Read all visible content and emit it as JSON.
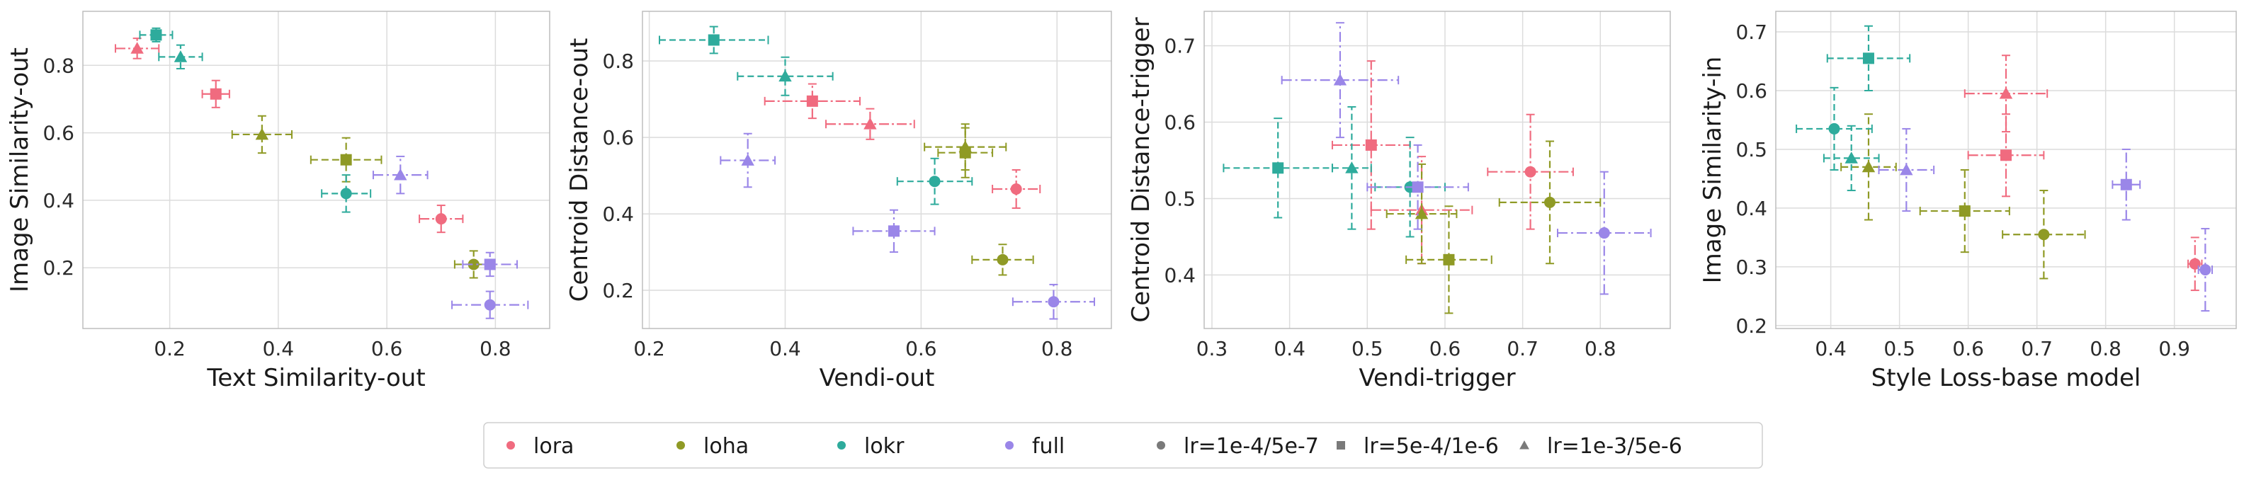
{
  "colors": {
    "lora": "#f06b7f",
    "loha": "#8f9a25",
    "lokr": "#2eab9c",
    "full": "#9a86e8",
    "neutral": "#7a7a7a",
    "grid": "#dcdcdc",
    "frame": "#bdbdbd"
  },
  "legend": {
    "items": [
      {
        "label": "lora",
        "marker": "circle",
        "color_key": "lora"
      },
      {
        "label": "loha",
        "marker": "circle",
        "color_key": "loha"
      },
      {
        "label": "lokr",
        "marker": "circle",
        "color_key": "lokr"
      },
      {
        "label": "full",
        "marker": "circle",
        "color_key": "full"
      },
      {
        "label": "lr=1e-4/5e-7",
        "marker": "circle",
        "color_key": "neutral"
      },
      {
        "label": "lr=5e-4/1e-6",
        "marker": "square",
        "color_key": "neutral"
      },
      {
        "label": "lr=1e-3/5e-6",
        "marker": "triangle",
        "color_key": "neutral"
      }
    ]
  },
  "chart_data": [
    {
      "type": "scatter",
      "xlabel": "Text Similarity-out",
      "ylabel": "Image Similarity-out",
      "xlim": [
        0.04,
        0.9
      ],
      "ylim": [
        0.02,
        0.96
      ],
      "xticks": [
        0.2,
        0.4,
        0.6,
        0.8
      ],
      "yticks": [
        0.2,
        0.4,
        0.6,
        0.8
      ],
      "tick_labels_x": [
        "0.2",
        "0.4",
        "0.6",
        "0.8"
      ],
      "tick_labels_y": [
        "0.2",
        "0.4",
        "0.6",
        "0.8"
      ],
      "grid": true,
      "points": [
        {
          "method": "lora",
          "lr": "lr=1e-3/5e-6",
          "x": 0.14,
          "y": 0.85,
          "xerr": 0.04,
          "yerr": 0.03
        },
        {
          "method": "lora",
          "lr": "lr=5e-4/1e-6",
          "x": 0.285,
          "y": 0.715,
          "xerr": 0.025,
          "yerr": 0.04
        },
        {
          "method": "lora",
          "lr": "lr=1e-4/5e-7",
          "x": 0.7,
          "y": 0.345,
          "xerr": 0.04,
          "yerr": 0.04
        },
        {
          "method": "loha",
          "lr": "lr=1e-3/5e-6",
          "x": 0.37,
          "y": 0.595,
          "xerr": 0.055,
          "yerr": 0.055
        },
        {
          "method": "loha",
          "lr": "lr=5e-4/1e-6",
          "x": 0.525,
          "y": 0.52,
          "xerr": 0.065,
          "yerr": 0.065
        },
        {
          "method": "loha",
          "lr": "lr=1e-4/5e-7",
          "x": 0.76,
          "y": 0.21,
          "xerr": 0.035,
          "yerr": 0.04
        },
        {
          "method": "lokr",
          "lr": "lr=5e-4/1e-6",
          "x": 0.175,
          "y": 0.89,
          "xerr": 0.03,
          "yerr": 0.02
        },
        {
          "method": "lokr",
          "lr": "lr=1e-3/5e-6",
          "x": 0.22,
          "y": 0.825,
          "xerr": 0.04,
          "yerr": 0.035
        },
        {
          "method": "lokr",
          "lr": "lr=1e-4/5e-7",
          "x": 0.525,
          "y": 0.42,
          "xerr": 0.045,
          "yerr": 0.055
        },
        {
          "method": "full",
          "lr": "lr=1e-3/5e-6",
          "x": 0.625,
          "y": 0.475,
          "xerr": 0.05,
          "yerr": 0.055
        },
        {
          "method": "full",
          "lr": "lr=5e-4/1e-6",
          "x": 0.79,
          "y": 0.21,
          "xerr": 0.05,
          "yerr": 0.035
        },
        {
          "method": "full",
          "lr": "lr=1e-4/5e-7",
          "x": 0.79,
          "y": 0.09,
          "xerr": 0.07,
          "yerr": 0.04
        }
      ]
    },
    {
      "type": "scatter",
      "xlabel": "Vendi-out",
      "ylabel": "Centroid Distance-out",
      "xlim": [
        0.19,
        0.88
      ],
      "ylim": [
        0.1,
        0.93
      ],
      "xticks": [
        0.2,
        0.4,
        0.6,
        0.8
      ],
      "yticks": [
        0.2,
        0.4,
        0.6,
        0.8
      ],
      "tick_labels_x": [
        "0.2",
        "0.4",
        "0.6",
        "0.8"
      ],
      "tick_labels_y": [
        "0.2",
        "0.4",
        "0.6",
        "0.8"
      ],
      "grid": true,
      "points": [
        {
          "method": "lora",
          "lr": "lr=5e-4/1e-6",
          "x": 0.44,
          "y": 0.695,
          "xerr": 0.07,
          "yerr": 0.045
        },
        {
          "method": "lora",
          "lr": "lr=1e-3/5e-6",
          "x": 0.525,
          "y": 0.635,
          "xerr": 0.065,
          "yerr": 0.04
        },
        {
          "method": "lora",
          "lr": "lr=1e-4/5e-7",
          "x": 0.74,
          "y": 0.465,
          "xerr": 0.035,
          "yerr": 0.05
        },
        {
          "method": "loha",
          "lr": "lr=1e-3/5e-6",
          "x": 0.665,
          "y": 0.575,
          "xerr": 0.06,
          "yerr": 0.06
        },
        {
          "method": "loha",
          "lr": "lr=5e-4/1e-6",
          "x": 0.665,
          "y": 0.56,
          "xerr": 0.04,
          "yerr": 0.065
        },
        {
          "method": "loha",
          "lr": "lr=1e-4/5e-7",
          "x": 0.72,
          "y": 0.28,
          "xerr": 0.045,
          "yerr": 0.04
        },
        {
          "method": "lokr",
          "lr": "lr=5e-4/1e-6",
          "x": 0.295,
          "y": 0.855,
          "xerr": 0.08,
          "yerr": 0.035
        },
        {
          "method": "lokr",
          "lr": "lr=1e-3/5e-6",
          "x": 0.4,
          "y": 0.76,
          "xerr": 0.07,
          "yerr": 0.05
        },
        {
          "method": "lokr",
          "lr": "lr=1e-4/5e-7",
          "x": 0.62,
          "y": 0.485,
          "xerr": 0.055,
          "yerr": 0.06
        },
        {
          "method": "full",
          "lr": "lr=1e-3/5e-6",
          "x": 0.345,
          "y": 0.54,
          "xerr": 0.04,
          "yerr": 0.07
        },
        {
          "method": "full",
          "lr": "lr=5e-4/1e-6",
          "x": 0.56,
          "y": 0.355,
          "xerr": 0.06,
          "yerr": 0.055
        },
        {
          "method": "full",
          "lr": "lr=1e-4/5e-7",
          "x": 0.795,
          "y": 0.17,
          "xerr": 0.06,
          "yerr": 0.045
        }
      ]
    },
    {
      "type": "scatter",
      "xlabel": "Vendi-trigger",
      "ylabel": "Centroid Distance-trigger",
      "xlim": [
        0.29,
        0.89
      ],
      "ylim": [
        0.33,
        0.745
      ],
      "xticks": [
        0.3,
        0.4,
        0.5,
        0.6,
        0.7,
        0.8
      ],
      "yticks": [
        0.4,
        0.5,
        0.6,
        0.7
      ],
      "tick_labels_x": [
        "0.3",
        "0.4",
        "0.5",
        "0.6",
        "0.7",
        "0.8"
      ],
      "tick_labels_y": [
        "0.4",
        "0.5",
        "0.6",
        "0.7"
      ],
      "grid": true,
      "points": [
        {
          "method": "lora",
          "lr": "lr=5e-4/1e-6",
          "x": 0.505,
          "y": 0.57,
          "xerr": 0.05,
          "yerr": 0.11
        },
        {
          "method": "lora",
          "lr": "lr=1e-3/5e-6",
          "x": 0.57,
          "y": 0.485,
          "xerr": 0.065,
          "yerr": 0.07
        },
        {
          "method": "lora",
          "lr": "lr=1e-4/5e-7",
          "x": 0.71,
          "y": 0.535,
          "xerr": 0.055,
          "yerr": 0.075
        },
        {
          "method": "loha",
          "lr": "lr=1e-3/5e-6",
          "x": 0.57,
          "y": 0.48,
          "xerr": 0.045,
          "yerr": 0.065
        },
        {
          "method": "loha",
          "lr": "lr=5e-4/1e-6",
          "x": 0.605,
          "y": 0.42,
          "xerr": 0.055,
          "yerr": 0.07
        },
        {
          "method": "loha",
          "lr": "lr=1e-4/5e-7",
          "x": 0.735,
          "y": 0.495,
          "xerr": 0.065,
          "yerr": 0.08
        },
        {
          "method": "lokr",
          "lr": "lr=5e-4/1e-6",
          "x": 0.385,
          "y": 0.54,
          "xerr": 0.07,
          "yerr": 0.065
        },
        {
          "method": "lokr",
          "lr": "lr=1e-3/5e-6",
          "x": 0.48,
          "y": 0.54,
          "xerr": 0.025,
          "yerr": 0.08
        },
        {
          "method": "lokr",
          "lr": "lr=1e-4/5e-7",
          "x": 0.555,
          "y": 0.515,
          "xerr": 0.045,
          "yerr": 0.065
        },
        {
          "method": "full",
          "lr": "lr=1e-3/5e-6",
          "x": 0.465,
          "y": 0.655,
          "xerr": 0.075,
          "yerr": 0.075
        },
        {
          "method": "full",
          "lr": "lr=5e-4/1e-6",
          "x": 0.565,
          "y": 0.515,
          "xerr": 0.065,
          "yerr": 0.055
        },
        {
          "method": "full",
          "lr": "lr=1e-4/5e-7",
          "x": 0.805,
          "y": 0.455,
          "xerr": 0.06,
          "yerr": 0.08
        }
      ]
    },
    {
      "type": "scatter",
      "xlabel": "Style Loss-base model",
      "ylabel": "Image Similarity-in",
      "xlim": [
        0.32,
        0.99
      ],
      "ylim": [
        0.195,
        0.735
      ],
      "xticks": [
        0.4,
        0.5,
        0.6,
        0.7,
        0.8,
        0.9
      ],
      "yticks": [
        0.2,
        0.3,
        0.4,
        0.5,
        0.6,
        0.7
      ],
      "tick_labels_x": [
        "0.4",
        "0.5",
        "0.6",
        "0.7",
        "0.8",
        "0.9"
      ],
      "tick_labels_y": [
        "0.2",
        "0.3",
        "0.4",
        "0.5",
        "0.6",
        "0.7"
      ],
      "grid": true,
      "points": [
        {
          "method": "lora",
          "lr": "lr=1e-3/5e-6",
          "x": 0.655,
          "y": 0.595,
          "xerr": 0.06,
          "yerr": 0.065
        },
        {
          "method": "lora",
          "lr": "lr=5e-4/1e-6",
          "x": 0.655,
          "y": 0.49,
          "xerr": 0.055,
          "yerr": 0.07
        },
        {
          "method": "lora",
          "lr": "lr=1e-4/5e-7",
          "x": 0.93,
          "y": 0.305,
          "xerr": 0.01,
          "yerr": 0.045
        },
        {
          "method": "loha",
          "lr": "lr=1e-3/5e-6",
          "x": 0.455,
          "y": 0.47,
          "xerr": 0.04,
          "yerr": 0.09
        },
        {
          "method": "loha",
          "lr": "lr=5e-4/1e-6",
          "x": 0.595,
          "y": 0.395,
          "xerr": 0.065,
          "yerr": 0.07
        },
        {
          "method": "loha",
          "lr": "lr=1e-4/5e-7",
          "x": 0.71,
          "y": 0.355,
          "xerr": 0.06,
          "yerr": 0.075
        },
        {
          "method": "lokr",
          "lr": "lr=5e-4/1e-6",
          "x": 0.455,
          "y": 0.655,
          "xerr": 0.06,
          "yerr": 0.055
        },
        {
          "method": "lokr",
          "lr": "lr=1e-4/5e-7",
          "x": 0.405,
          "y": 0.535,
          "xerr": 0.055,
          "yerr": 0.07
        },
        {
          "method": "lokr",
          "lr": "lr=1e-3/5e-6",
          "x": 0.43,
          "y": 0.485,
          "xerr": 0.04,
          "yerr": 0.055
        },
        {
          "method": "full",
          "lr": "lr=1e-3/5e-6",
          "x": 0.51,
          "y": 0.465,
          "xerr": 0.04,
          "yerr": 0.07
        },
        {
          "method": "full",
          "lr": "lr=5e-4/1e-6",
          "x": 0.83,
          "y": 0.44,
          "xerr": 0.02,
          "yerr": 0.06
        },
        {
          "method": "full",
          "lr": "lr=1e-4/5e-7",
          "x": 0.945,
          "y": 0.295,
          "xerr": 0.01,
          "yerr": 0.07
        }
      ]
    }
  ]
}
